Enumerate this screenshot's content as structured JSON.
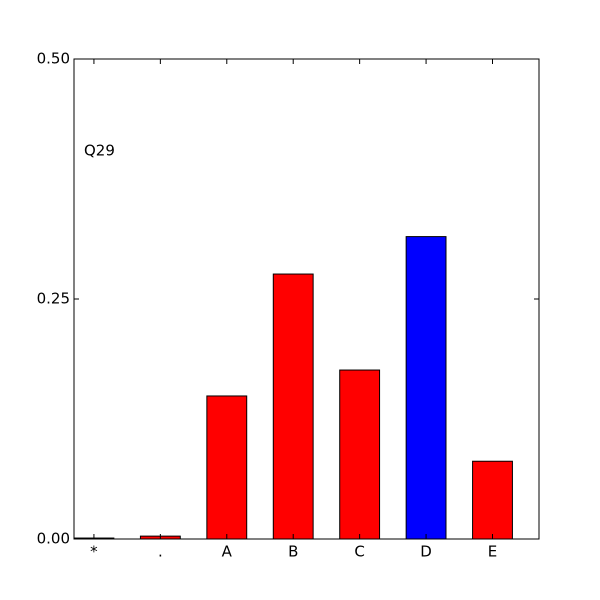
{
  "chart_data": {
    "type": "bar",
    "annotation": "Q29",
    "categories": [
      "*",
      ".",
      "A",
      "B",
      "C",
      "D",
      "E"
    ],
    "values": [
      0.001,
      0.003,
      0.149,
      0.276,
      0.176,
      0.315,
      0.081
    ],
    "colors": [
      "#ff0000",
      "#ff0000",
      "#ff0000",
      "#ff0000",
      "#ff0000",
      "#0000ff",
      "#ff0000"
    ],
    "ylim": [
      0,
      0.5
    ],
    "yticks": [
      {
        "value": 0,
        "label": "0.00"
      },
      {
        "value": 0.25,
        "label": "0.25"
      },
      {
        "value": 0.5,
        "label": "0.50"
      }
    ]
  }
}
